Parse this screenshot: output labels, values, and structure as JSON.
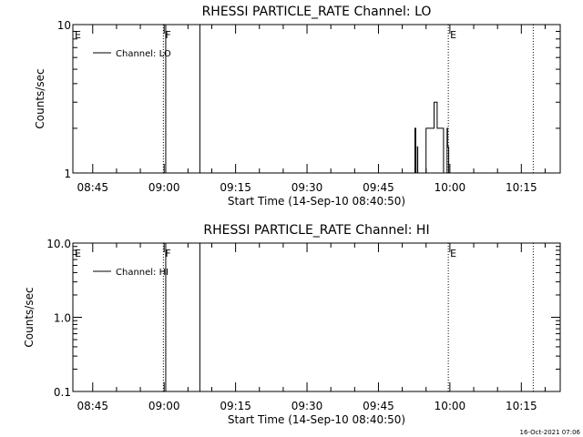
{
  "footer": {
    "timestamp": "16-Oct-2021 07:06"
  },
  "chart_data": [
    {
      "type": "line",
      "title": "RHESSI PARTICLE_RATE Channel: LO",
      "xlabel": "Start Time (14-Sep-10 08:40:50)",
      "ylabel": "Counts/sec",
      "yscale": "log",
      "ylim": [
        1,
        10
      ],
      "y_ticks": [
        1,
        10
      ],
      "y_tick_labels": [
        "1",
        "10"
      ],
      "xlim": [
        "08:40:50",
        "10:23:10"
      ],
      "x_ticks": [
        "08:45",
        "09:00",
        "09:15",
        "09:30",
        "09:45",
        "10:00",
        "10:15"
      ],
      "grid": false,
      "legend": "top-left",
      "series": [
        {
          "name": "Channel: LO",
          "x": [
            "09:51:55",
            "09:52:40",
            "09:52:50",
            "09:53:10",
            "09:53:15",
            "09:55:00",
            "09:56:10",
            "09:56:40",
            "09:57:20",
            "09:58:00",
            "09:58:20",
            "09:58:40",
            "09:58:55",
            "09:59:25",
            "09:59:30",
            "09:59:45"
          ],
          "y": [
            1,
            2,
            1,
            1.5,
            1,
            2,
            2,
            3,
            2,
            2,
            2,
            1,
            1,
            2,
            1.5,
            1
          ]
        }
      ],
      "vlines": [
        {
          "t": "08:40:50",
          "style": "solid",
          "label": "E"
        },
        {
          "t": "08:59:50",
          "style": "dotted",
          "label": "F"
        },
        {
          "t": "09:00:20",
          "style": "solid",
          "label": ""
        },
        {
          "t": "09:07:30",
          "style": "solid",
          "label": ""
        },
        {
          "t": "09:59:40",
          "style": "dotted",
          "label": "E"
        },
        {
          "t": "10:17:30",
          "style": "dotted",
          "label": ""
        }
      ]
    },
    {
      "type": "line",
      "title": "RHESSI PARTICLE_RATE Channel: HI",
      "xlabel": "Start Time (14-Sep-10 08:40:50)",
      "ylabel": "Counts/sec",
      "yscale": "log",
      "ylim": [
        0.1,
        10
      ],
      "y_ticks": [
        0.1,
        1,
        10
      ],
      "y_tick_labels": [
        "0.1",
        "1.0",
        "10.0"
      ],
      "xlim": [
        "08:40:50",
        "10:23:10"
      ],
      "x_ticks": [
        "08:45",
        "09:00",
        "09:15",
        "09:30",
        "09:45",
        "10:00",
        "10:15"
      ],
      "grid": false,
      "legend": "top-left",
      "series": [
        {
          "name": "Channel: HI",
          "x": [],
          "y": []
        }
      ],
      "vlines": [
        {
          "t": "08:40:50",
          "style": "solid",
          "label": "E"
        },
        {
          "t": "08:59:50",
          "style": "dotted",
          "label": "F"
        },
        {
          "t": "09:00:20",
          "style": "solid",
          "label": ""
        },
        {
          "t": "09:07:30",
          "style": "solid",
          "label": ""
        },
        {
          "t": "09:59:40",
          "style": "dotted",
          "label": "E"
        },
        {
          "t": "10:17:30",
          "style": "dotted",
          "label": ""
        }
      ]
    }
  ]
}
